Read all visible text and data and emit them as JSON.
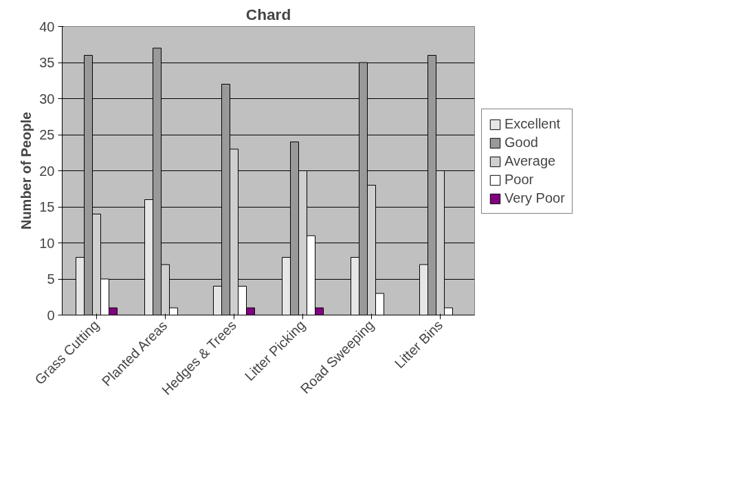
{
  "chart_data": {
    "type": "bar",
    "title": "Chard",
    "ylabel": "Number of People",
    "categories": [
      "Grass Cutting",
      "Planted Areas",
      "Hedges & Trees",
      "Litter Picking",
      "Road Sweeping",
      "Litter Bins"
    ],
    "series": [
      {
        "name": "Excellent",
        "color": "#e6e6e6",
        "values": [
          8,
          16,
          4,
          8,
          8,
          7
        ]
      },
      {
        "name": "Good",
        "color": "#999999",
        "values": [
          36,
          37,
          32,
          24,
          35,
          36
        ]
      },
      {
        "name": "Average",
        "color": "#cfcfcf",
        "values": [
          14,
          7,
          23,
          20,
          18,
          20
        ]
      },
      {
        "name": "Poor",
        "color": "#ffffff",
        "values": [
          5,
          1,
          4,
          11,
          3,
          1
        ]
      },
      {
        "name": "Very Poor",
        "color": "#800080",
        "values": [
          1,
          null,
          1,
          1,
          null,
          null
        ]
      }
    ],
    "ylim": [
      0,
      40
    ],
    "yticks": [
      0,
      5,
      10,
      15,
      20,
      25,
      30,
      35,
      40
    ],
    "grid": "y",
    "legend": "right"
  }
}
